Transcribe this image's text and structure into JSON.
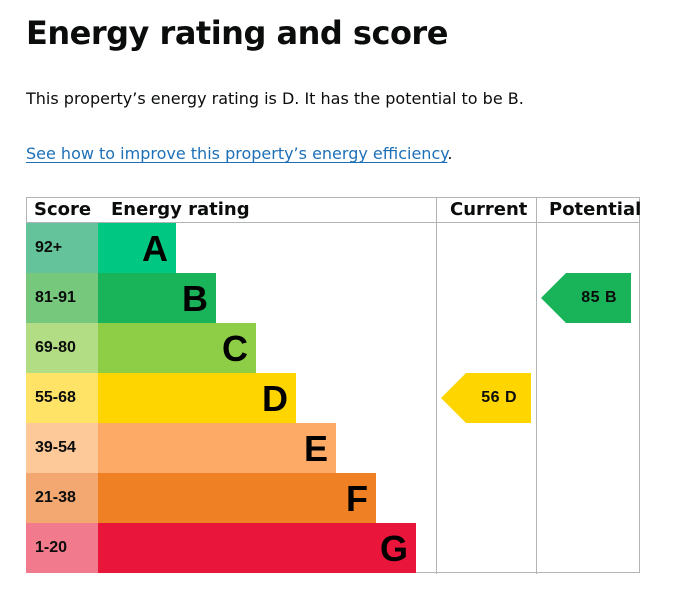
{
  "page": {
    "title": "Energy rating and score",
    "summary": "This property’s energy rating is D. It has the potential to be B.",
    "link_text": "See how to improve this property’s energy efficiency",
    "link_suffix": "."
  },
  "chart": {
    "headers": {
      "score": "Score",
      "rating": "Energy rating",
      "current": "Current",
      "potential": "Potential"
    },
    "bands": [
      {
        "letter": "A",
        "range": "92+",
        "score_color": "#64c39a",
        "bar_color": "#00c781"
      },
      {
        "letter": "B",
        "range": "81-91",
        "score_color": "#76c87d",
        "bar_color": "#19b459"
      },
      {
        "letter": "C",
        "range": "69-80",
        "score_color": "#b2dd84",
        "bar_color": "#8dce46"
      },
      {
        "letter": "D",
        "range": "55-68",
        "score_color": "#ffe366",
        "bar_color": "#ffd500"
      },
      {
        "letter": "E",
        "range": "39-54",
        "score_color": "#fdc999",
        "bar_color": "#fcaa65"
      },
      {
        "letter": "F",
        "range": "21-38",
        "score_color": "#f3a871",
        "bar_color": "#ef8023"
      },
      {
        "letter": "G",
        "range": "1-20",
        "score_color": "#f27a8d",
        "bar_color": "#e9153b"
      }
    ],
    "current": {
      "score": 56,
      "letter": "D",
      "label": "56 D",
      "color": "#ffd500"
    },
    "potential": {
      "score": 85,
      "letter": "B",
      "label": "85 B",
      "color": "#19b459"
    }
  }
}
